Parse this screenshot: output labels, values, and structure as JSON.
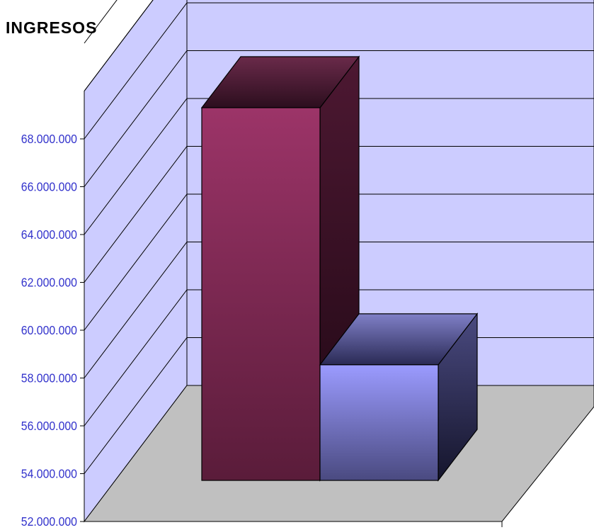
{
  "chart_data": {
    "type": "bar",
    "title": "INGRESOS",
    "categories": [
      "",
      ""
    ],
    "values": [
      67200000,
      57900000
    ],
    "ylim": [
      52000000,
      68000000
    ],
    "yticks": [
      "52.000.000",
      "54.000.000",
      "56.000.000",
      "58.000.000",
      "60.000.000",
      "62.000.000",
      "64.000.000",
      "66.000.000",
      "68.000.000"
    ],
    "grid": true,
    "projection": "3d",
    "colors": {
      "wall": "#ccccff",
      "floor": "#c0c0c0",
      "tick_text": "#3333cc",
      "series": [
        "#993366",
        "#9999ff"
      ]
    }
  }
}
